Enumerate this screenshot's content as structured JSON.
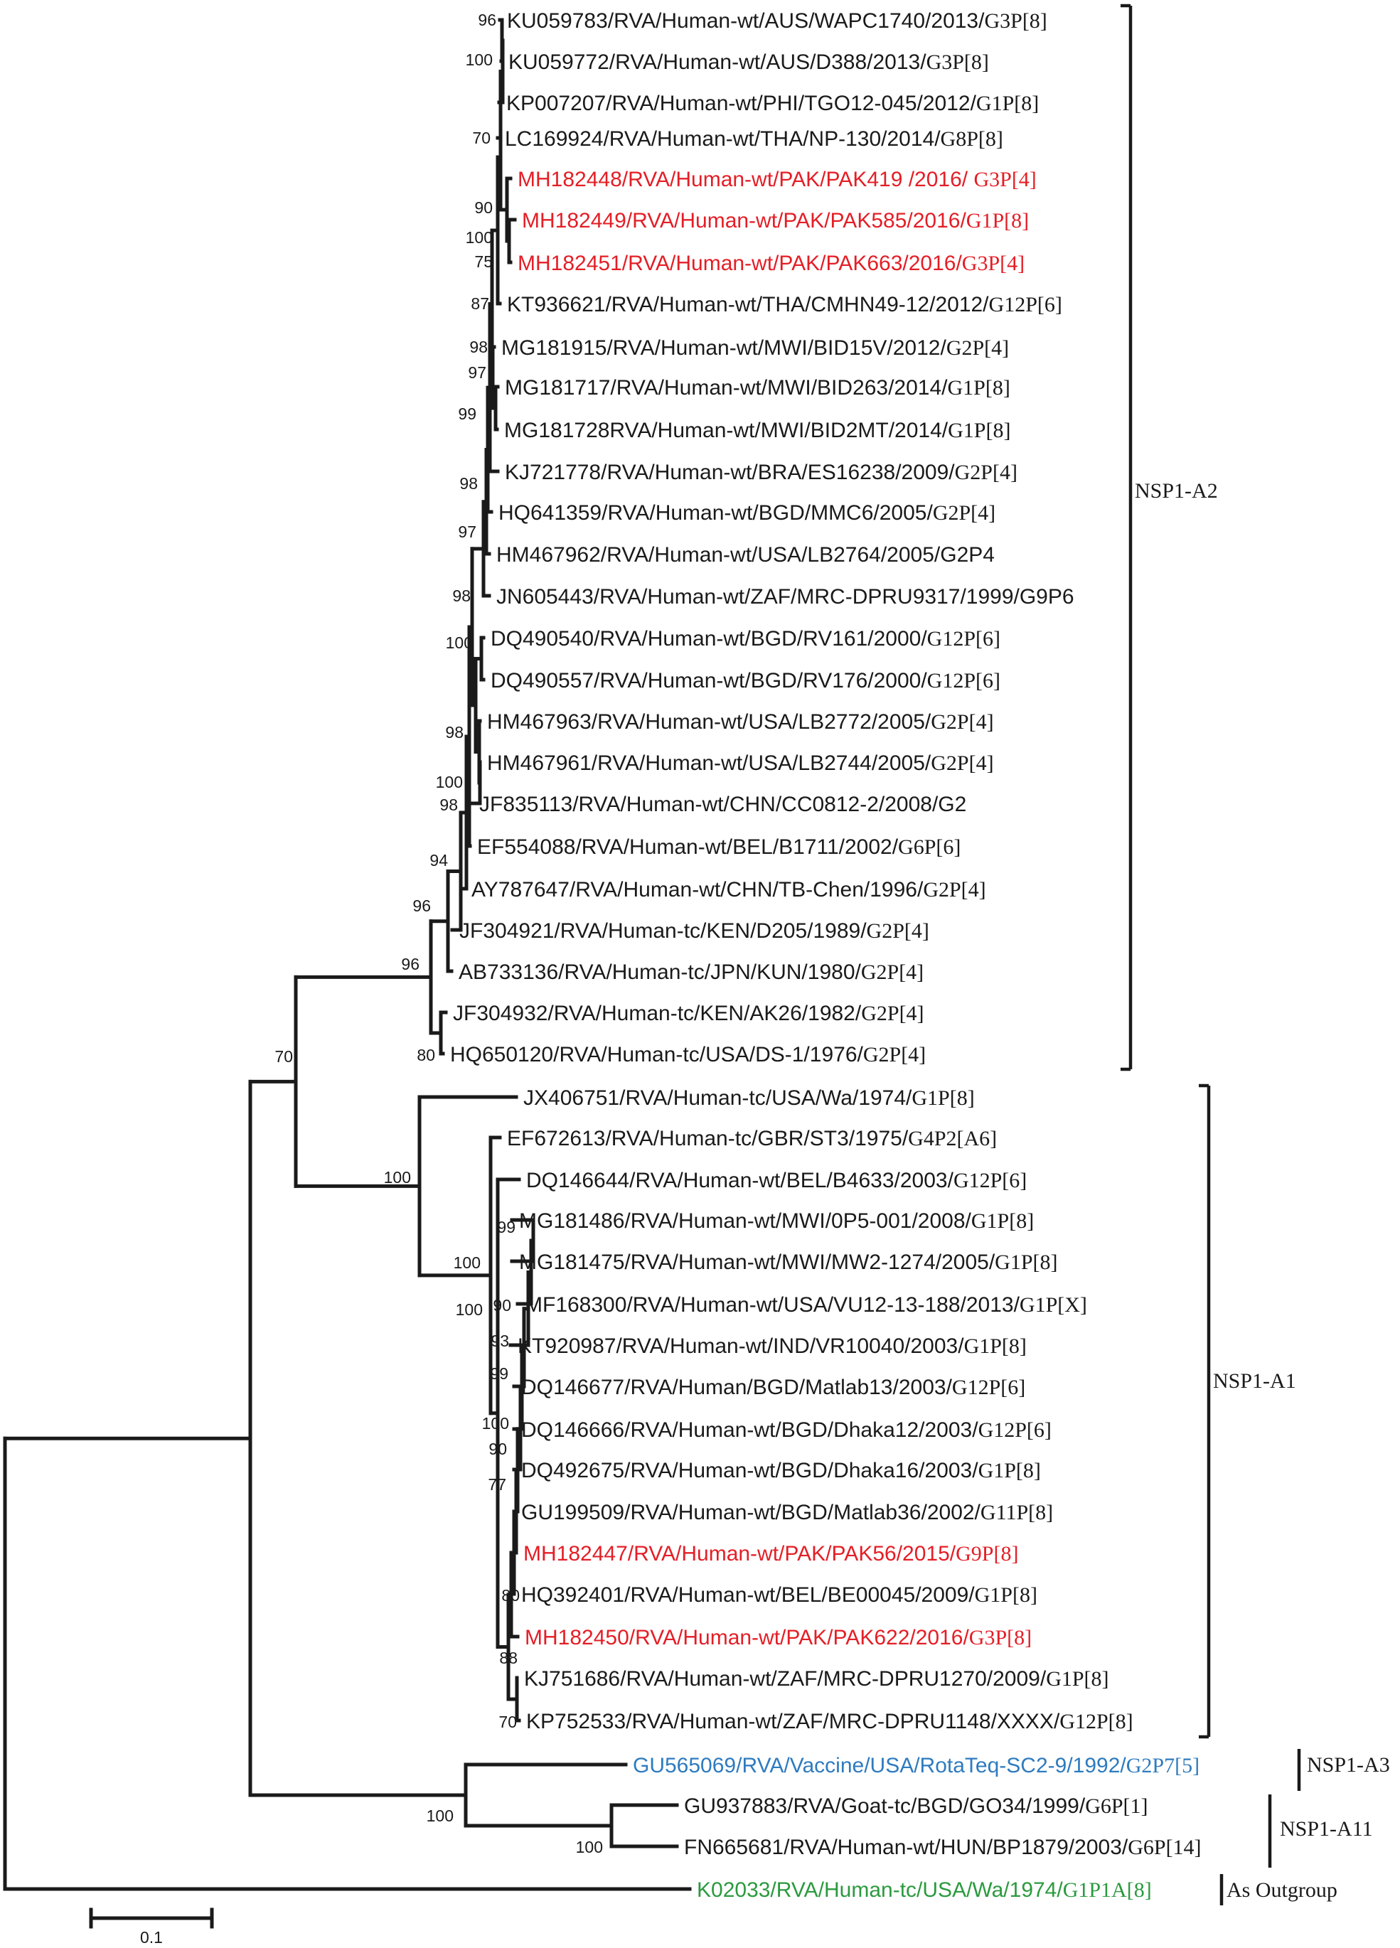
{
  "colors": {
    "black": "#1a1a1a",
    "pak": "#e41e26",
    "vaccine": "#2e7bbf",
    "outgroup": "#2b9a3e"
  },
  "taxa": [
    {
      "id": "KU059783",
      "name": "KU059783/RVA/Human-wt/AUS/WAPC1740/2013/",
      "genotype": "G3P[8]",
      "color": "black"
    },
    {
      "id": "KU059772",
      "name": "KU059772/RVA/Human-wt/AUS/D388/2013/",
      "genotype": "G3P[8]",
      "color": "black"
    },
    {
      "id": "KP007207",
      "name": "KP007207/RVA/Human-wt/PHI/TGO12-045/2012/",
      "genotype": "G1P[8]",
      "color": "black"
    },
    {
      "id": "LC169924",
      "name": "LC169924/RVA/Human-wt/THA/NP-130/2014/",
      "genotype": "G8P[8]",
      "color": "black"
    },
    {
      "id": "MH182448",
      "name": "MH182448/RVA/Human-wt/PAK/PAK419 /2016/ ",
      "genotype": "G3P[4]",
      "color": "pak"
    },
    {
      "id": "MH182449",
      "name": "MH182449/RVA/Human-wt/PAK/PAK585/2016/",
      "genotype": "G1P[8]",
      "color": "pak"
    },
    {
      "id": "MH182451",
      "name": "MH182451/RVA/Human-wt/PAK/PAK663/2016/",
      "genotype": "G3P[4]",
      "color": "pak"
    },
    {
      "id": "KT936621",
      "name": "KT936621/RVA/Human-wt/THA/CMHN49-12/2012/",
      "genotype": "G12P[6]",
      "color": "black"
    },
    {
      "id": "MG181915",
      "name": "MG181915/RVA/Human-wt/MWI/BID15V/2012/",
      "genotype": "G2P[4]",
      "color": "black"
    },
    {
      "id": "MG181717",
      "name": "MG181717/RVA/Human-wt/MWI/BID263/2014/",
      "genotype": "G1P[8]",
      "color": "black"
    },
    {
      "id": "MG181728",
      "name": "MG181728RVA/Human-wt/MWI/BID2MT/2014/",
      "genotype": "G1P[8]",
      "color": "black"
    },
    {
      "id": "KJ721778",
      "name": "KJ721778/RVA/Human-wt/BRA/ES16238/2009/",
      "genotype": "G2P[4]",
      "color": "black"
    },
    {
      "id": "HQ641359",
      "name": "HQ641359/RVA/Human-wt/BGD/MMC6/2005/",
      "genotype": "G2P[4]",
      "color": "black"
    },
    {
      "id": "HM467962",
      "name": "HM467962/RVA/Human-wt/USA/LB2764/2005/G2P4",
      "genotype": "",
      "color": "black"
    },
    {
      "id": "JN605443",
      "name": "JN605443/RVA/Human-wt/ZAF/MRC-DPRU9317/1999/G9P6",
      "genotype": "",
      "color": "black"
    },
    {
      "id": "DQ490540",
      "name": "DQ490540/RVA/Human-wt/BGD/RV161/2000/",
      "genotype": "G12P[6]",
      "color": "black"
    },
    {
      "id": "DQ490557",
      "name": "DQ490557/RVA/Human-wt/BGD/RV176/2000/",
      "genotype": "G12P[6]",
      "color": "black"
    },
    {
      "id": "HM467963",
      "name": "HM467963/RVA/Human-wt/USA/LB2772/2005/",
      "genotype": "G2P[4]",
      "color": "black"
    },
    {
      "id": "HM467961",
      "name": "HM467961/RVA/Human-wt/USA/LB2744/2005/",
      "genotype": "G2P[4]",
      "color": "black"
    },
    {
      "id": "JF835113",
      "name": "JF835113/RVA/Human-wt/CHN/CC0812-2/2008/G2",
      "genotype": "",
      "color": "black"
    },
    {
      "id": "EF554088",
      "name": "EF554088/RVA/Human-wt/BEL/B1711/2002/",
      "genotype": "G6P[6]",
      "color": "black"
    },
    {
      "id": "AY787647",
      "name": "AY787647/RVA/Human-wt/CHN/TB-Chen/1996/",
      "genotype": "G2P[4]",
      "color": "black"
    },
    {
      "id": "JF304921",
      "name": "JF304921/RVA/Human-tc/KEN/D205/1989/",
      "genotype": "G2P[4]",
      "color": "black"
    },
    {
      "id": "AB733136",
      "name": "AB733136/RVA/Human-tc/JPN/KUN/1980/",
      "genotype": "G2P[4]",
      "color": "black"
    },
    {
      "id": "JF304932",
      "name": "JF304932/RVA/Human-tc/KEN/AK26/1982/",
      "genotype": "G2P[4]",
      "color": "black"
    },
    {
      "id": "HQ650120",
      "name": "HQ650120/RVA/Human-tc/USA/DS-1/1976/",
      "genotype": "G2P[4]",
      "color": "black"
    },
    {
      "id": "JX406751",
      "name": "JX406751/RVA/Human-tc/USA/Wa/1974/",
      "genotype": "G1P[8]",
      "color": "black"
    },
    {
      "id": "EF672613",
      "name": "EF672613/RVA/Human-tc/GBR/ST3/1975/",
      "genotype": "G4P2[A6]",
      "color": "black"
    },
    {
      "id": "DQ146644",
      "name": "DQ146644/RVA/Human-wt/BEL/B4633/2003/",
      "genotype": "G12P[6]",
      "color": "black"
    },
    {
      "id": "MG181486",
      "name": "MG181486/RVA/Human-wt/MWI/0P5-001/2008/",
      "genotype": "G1P[8]",
      "color": "black"
    },
    {
      "id": "MG181475",
      "name": "MG181475/RVA/Human-wt/MWI/MW2-1274/2005/",
      "genotype": "G1P[8]",
      "color": "black"
    },
    {
      "id": "MF168300",
      "name": "MF168300/RVA/Human-wt/USA/VU12-13-188/2013/",
      "genotype": "G1P[X]",
      "color": "black"
    },
    {
      "id": "KT920987",
      "name": "KT920987/RVA/Human-wt/IND/VR10040/2003/",
      "genotype": "G1P[8]",
      "color": "black"
    },
    {
      "id": "DQ146677",
      "name": "DQ146677/RVA/Human/BGD/Matlab13/2003/",
      "genotype": "G12P[6]",
      "color": "black"
    },
    {
      "id": "DQ146666",
      "name": "DQ146666/RVA/Human-wt/BGD/Dhaka12/2003/",
      "genotype": "G12P[6]",
      "color": "black"
    },
    {
      "id": "DQ492675",
      "name": "DQ492675/RVA/Human-wt/BGD/Dhaka16/2003/",
      "genotype": "G1P[8]",
      "color": "black"
    },
    {
      "id": "GU199509",
      "name": "GU199509/RVA/Human-wt/BGD/Matlab36/2002/",
      "genotype": "G11P[8]",
      "color": "black"
    },
    {
      "id": "MH182447",
      "name": "MH182447/RVA/Human-wt/PAK/PAK56/2015/",
      "genotype": "G9P[8]",
      "color": "pak"
    },
    {
      "id": "HQ392401",
      "name": "HQ392401/RVA/Human-wt/BEL/BE00045/2009/",
      "genotype": "G1P[8]",
      "color": "black"
    },
    {
      "id": "MH182450",
      "name": "MH182450/RVA/Human-wt/PAK/PAK622/2016/",
      "genotype": "G3P[8]",
      "color": "pak"
    },
    {
      "id": "KJ751686",
      "name": "KJ751686/RVA/Human-wt/ZAF/MRC-DPRU1270/2009/",
      "genotype": "G1P[8]",
      "color": "black"
    },
    {
      "id": "KP752533",
      "name": "KP752533/RVA/Human-wt/ZAF/MRC-DPRU1148/XXXX/",
      "genotype": "G12P[8]",
      "color": "black"
    },
    {
      "id": "GU565069",
      "name": "GU565069/RVA/Vaccine/USA/RotaTeq-SC2-9/1992/",
      "genotype": "G2P7[5]",
      "color": "vaccine"
    },
    {
      "id": "GU937883",
      "name": "GU937883/RVA/Goat-tc/BGD/GO34/1999/",
      "genotype": "G6P[1]",
      "color": "black"
    },
    {
      "id": "FN665681",
      "name": "FN665681/RVA/Human-wt/HUN/BP1879/2003/",
      "genotype": "G6P[14]",
      "color": "black"
    },
    {
      "id": "K02033",
      "name": "K02033/RVA/Human-tc/USA/Wa/1974/",
      "genotype": "G1P1A[8]",
      "color": "outgroup"
    }
  ],
  "bootstrap": [
    "96",
    "100",
    "70",
    "90",
    "100",
    "75",
    "87",
    "98",
    "97",
    "99",
    "98",
    "97",
    "98",
    "100",
    "98",
    "100",
    "98",
    "94",
    "96",
    "96",
    "80",
    "70",
    "100",
    "100",
    "99",
    "90",
    "100",
    "93",
    "99",
    "100",
    "90",
    "77",
    "80",
    "88",
    "70",
    "100",
    "100"
  ],
  "clades": [
    {
      "id": "a2",
      "label": "NSP1-A2"
    },
    {
      "id": "a1",
      "label": "NSP1-A1"
    },
    {
      "id": "a3",
      "label": "NSP1-A3"
    },
    {
      "id": "a11",
      "label": "NSP1-A11"
    },
    {
      "id": "out",
      "label": "As Outgroup"
    }
  ],
  "scale_bar": {
    "label": "0.1",
    "value": 0.1
  }
}
